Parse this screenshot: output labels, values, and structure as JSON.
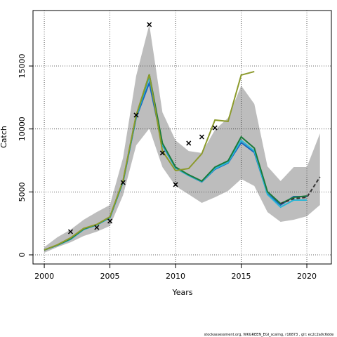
{
  "chart_data": {
    "type": "line",
    "xlabel": "Years",
    "ylabel": "Catch",
    "footer": "stockassessment.org, WKGREEN_EGI_scaling, r16873 , git: ec2c2a0c6dde",
    "x": [
      2000,
      2001,
      2002,
      2003,
      2004,
      2005,
      2006,
      2007,
      2008,
      2009,
      2010,
      2011,
      2012,
      2013,
      2014,
      2015,
      2016,
      2017,
      2018,
      2019,
      2020,
      2021
    ],
    "xlim": [
      1999.14,
      2021.87
    ],
    "xticks": [
      2000,
      2005,
      2010,
      2015,
      2020
    ],
    "ylim": [
      -725,
      19407
    ],
    "yticks": [
      0,
      5000,
      10000,
      15000
    ],
    "grid": true,
    "band": {
      "color": "#bdbdbd",
      "upper": [
        610,
        1400,
        2000,
        2790,
        3400,
        3960,
        7700,
        14220,
        18290,
        11320,
        9090,
        8250,
        8090,
        9930,
        10880,
        13440,
        11990,
        7030,
        5860,
        6970,
        6970,
        9650
      ],
      "lower": [
        170,
        610,
        1000,
        1500,
        1840,
        2290,
        4740,
        8700,
        10040,
        6970,
        5470,
        4800,
        4130,
        4570,
        5080,
        6020,
        5470,
        3400,
        2620,
        2790,
        3070,
        3960
      ]
    },
    "series": [
      {
        "color": "#1565c0",
        "values": [
          390,
          760,
          1230,
          2020,
          2380,
          2950,
          5800,
          10900,
          13660,
          8700,
          6900,
          6300,
          5800,
          6800,
          7300,
          8920,
          8140,
          4850,
          3960,
          4630,
          4630,
          null
        ]
      },
      {
        "color": "#29b6d6",
        "values": [
          390,
          760,
          1230,
          2020,
          2380,
          2950,
          5800,
          10950,
          14110,
          8750,
          6900,
          6300,
          5820,
          6850,
          7350,
          9090,
          8250,
          4800,
          3790,
          4350,
          4350,
          null
        ]
      },
      {
        "color": "#1b7a3a",
        "values": [
          390,
          780,
          1280,
          2060,
          2400,
          3010,
          5860,
          11040,
          14330,
          8870,
          6970,
          6360,
          5860,
          6970,
          7470,
          9370,
          8480,
          5020,
          4070,
          4570,
          4680,
          null
        ]
      },
      {
        "color": "#8c9a2c",
        "values": [
          390,
          800,
          1350,
          2100,
          2420,
          3020,
          5900,
          11100,
          14330,
          8250,
          6690,
          6860,
          8030,
          10710,
          10600,
          14280,
          14560,
          null,
          null,
          null,
          null,
          null
        ]
      },
      {
        "color": "#333333",
        "dashed": true,
        "values": [
          null,
          null,
          null,
          null,
          null,
          null,
          null,
          null,
          null,
          null,
          null,
          null,
          null,
          null,
          null,
          null,
          null,
          null,
          4070,
          4460,
          4570,
          6190
        ]
      }
    ],
    "points": {
      "color": "#000000",
      "x": [
        2002,
        2004,
        2005,
        2006,
        2007,
        2008,
        2009,
        2010,
        2011,
        2012,
        2013
      ],
      "values": [
        1840,
        2175,
        2680,
        5745,
        11100,
        18290,
        8090,
        5580,
        8870,
        9370,
        10090
      ]
    }
  }
}
